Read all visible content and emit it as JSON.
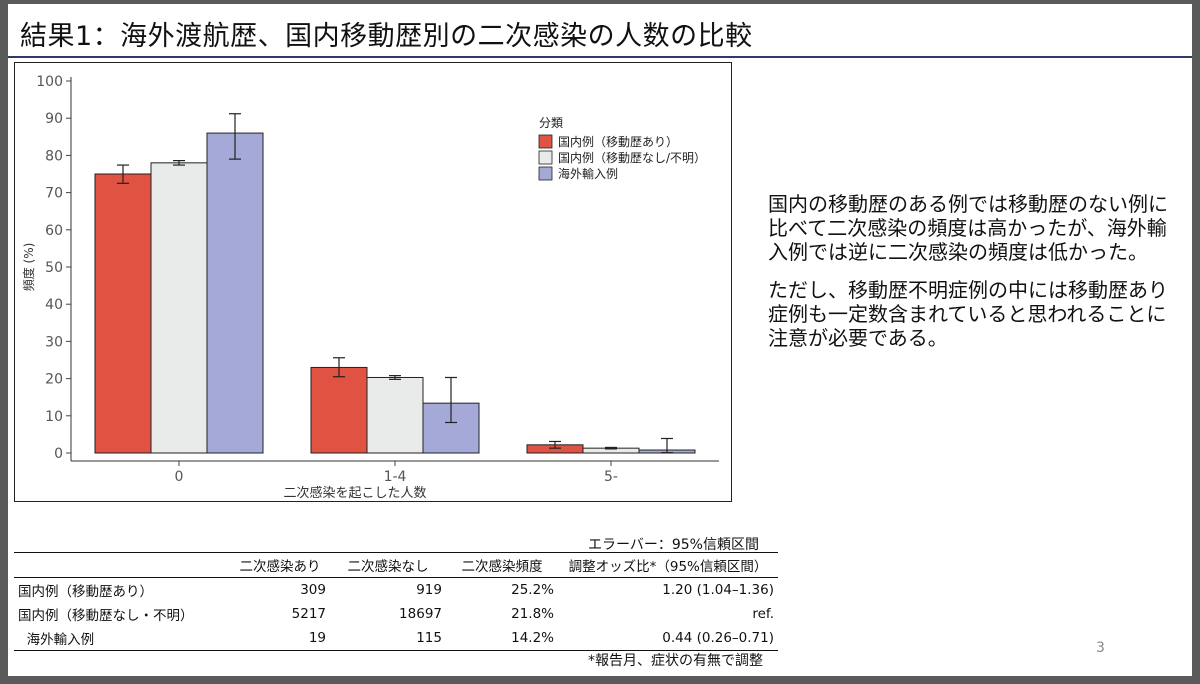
{
  "slide": {
    "title": "結果1：海外渡航歴、国内移動歴別の二次感染の人数の比較",
    "page_number": "3"
  },
  "chart_data": {
    "type": "bar",
    "xlabel": "二次感染を起こした人数",
    "ylabel": "頻度 (%)",
    "categories": [
      "0",
      "1-4",
      "5-"
    ],
    "ylim": [
      0,
      100
    ],
    "yticks": [
      0,
      10,
      20,
      30,
      40,
      50,
      60,
      70,
      80,
      90,
      100
    ],
    "legend": {
      "title": "分類",
      "position": "top-right"
    },
    "series": [
      {
        "name": "国内例（移動歴あり）",
        "color": "#e05241",
        "values": [
          75,
          23,
          2.2
        ],
        "err_low": [
          72.5,
          20.5,
          1.3
        ],
        "err_high": [
          77.4,
          25.6,
          3.1
        ]
      },
      {
        "name": "国内例（移動歴なし/不明）",
        "color": "#e8ebe9",
        "values": [
          78,
          20.3,
          1.3
        ],
        "err_low": [
          77.4,
          19.8,
          1.1
        ],
        "err_high": [
          78.6,
          20.8,
          1.5
        ]
      },
      {
        "name": "海外輸入例",
        "color": "#a4a9d8",
        "values": [
          86,
          13.4,
          0.8
        ],
        "err_low": [
          79,
          8.2,
          0.1
        ],
        "err_high": [
          91.2,
          20.3,
          3.9
        ]
      }
    ]
  },
  "notes": [
    "国内の移動歴のある例では移動歴のない例に比べて二次感染の頻度は高かったが、海外輸入例では逆に二次感染の頻度は低かった。",
    "ただし、移動歴不明症例の中には移動歴あり症例も一定数含まれていると思われることに注意が必要である。"
  ],
  "table": {
    "error_bar_note": "エラーバー：95%信頼区間",
    "headers": [
      "",
      "二次感染あり",
      "二次感染なし",
      "二次感染頻度",
      "調整オッズ比*（95%信頼区間）"
    ],
    "rows": [
      [
        "国内例（移動歴あり）",
        "309",
        "919",
        "25.2%",
        "1.20 (1.04–1.36)"
      ],
      [
        "国内例（移動歴なし・不明）",
        "5217",
        "18697",
        "21.8%",
        "ref."
      ],
      [
        "  海外輸入例",
        "19",
        "115",
        "14.2%",
        "0.44 (0.26–0.71)"
      ]
    ],
    "footnote": "*報告月、症状の有無で調整"
  }
}
